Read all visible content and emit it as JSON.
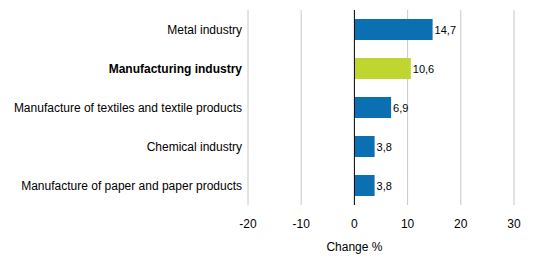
{
  "chart_data": {
    "type": "bar",
    "orientation": "horizontal",
    "categories": [
      "Metal industry",
      "Manufacturing industry",
      "Manufacture of textiles and textile products",
      "Chemical industry",
      "Manufacture of paper and paper products"
    ],
    "values": [
      14.7,
      10.6,
      6.9,
      3.8,
      3.8
    ],
    "value_labels": [
      "14,7",
      "10,6",
      "6,9",
      "3,8",
      "3,8"
    ],
    "colors": [
      "#0a70b2",
      "#bed62f",
      "#0a70b2",
      "#0a70b2",
      "#0a70b2"
    ],
    "xlabel": "Change %",
    "xlim": [
      -20,
      30
    ],
    "xticks": [
      -20,
      -10,
      0,
      10,
      20,
      30
    ],
    "grid": true,
    "data_labels": true
  }
}
